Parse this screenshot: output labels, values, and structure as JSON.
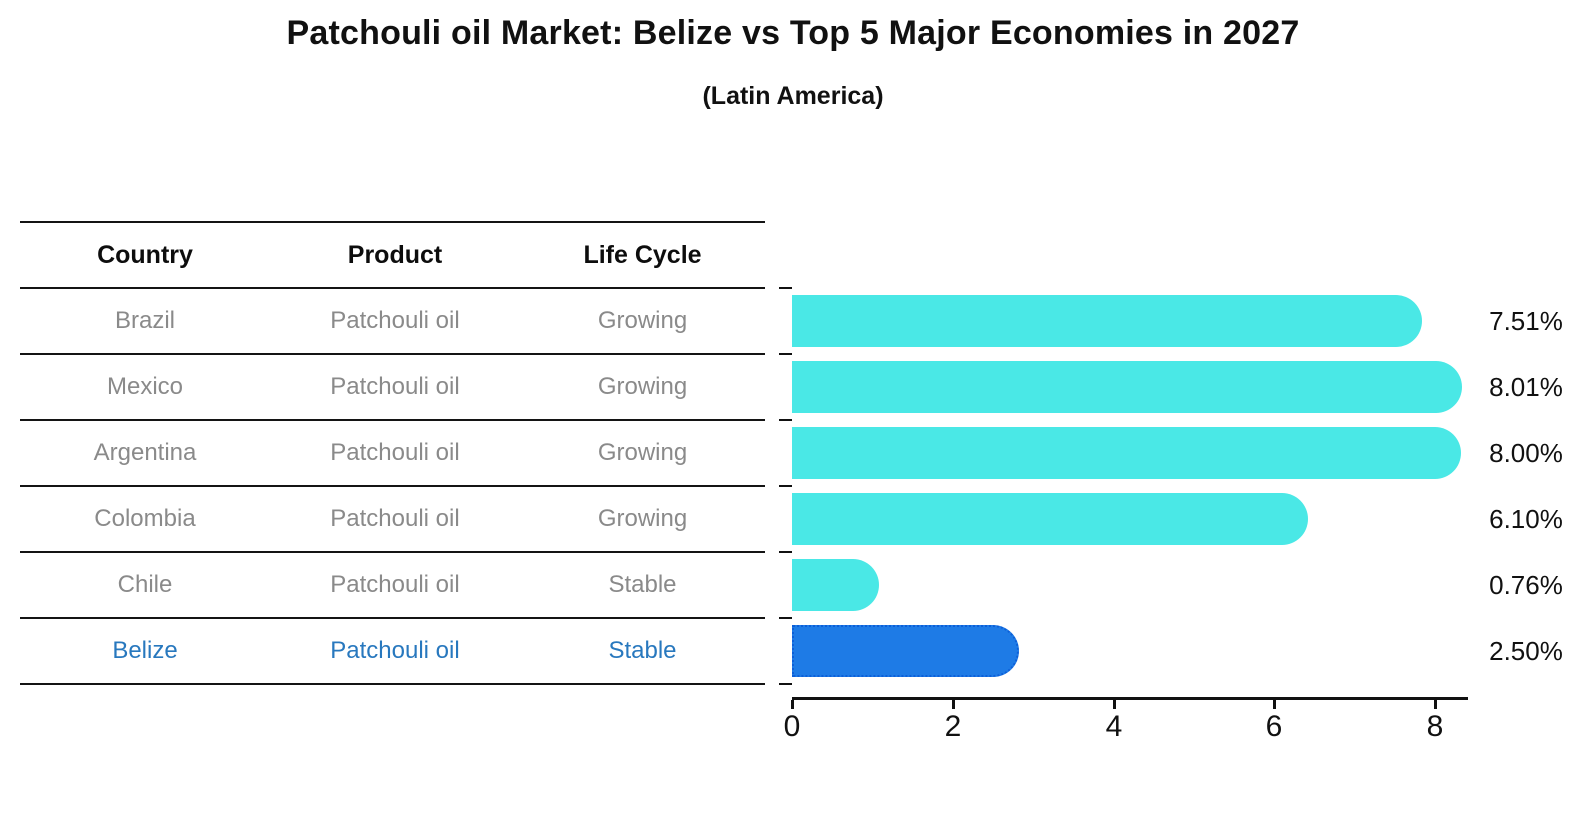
{
  "title": "Patchouli oil Market: Belize vs Top 5 Major Economies in 2027",
  "subtitle": "(Latin America)",
  "table": {
    "headers": [
      "Country",
      "Product",
      "Life Cycle"
    ],
    "rows": [
      {
        "country": "Brazil",
        "product": "Patchouli oil",
        "life_cycle": "Growing",
        "highlight": false
      },
      {
        "country": "Mexico",
        "product": "Patchouli oil",
        "life_cycle": "Growing",
        "highlight": false
      },
      {
        "country": "Argentina",
        "product": "Patchouli oil",
        "life_cycle": "Growing",
        "highlight": false
      },
      {
        "country": "Colombia",
        "product": "Patchouli oil",
        "life_cycle": "Growing",
        "highlight": false
      },
      {
        "country": "Chile",
        "product": "Patchouli oil",
        "life_cycle": "Stable",
        "highlight": false
      },
      {
        "country": "Belize",
        "product": "Patchouli oil",
        "life_cycle": "Stable",
        "highlight": true
      }
    ]
  },
  "chart_data": {
    "type": "bar",
    "orientation": "horizontal",
    "title": "Patchouli oil Market: Belize vs Top 5 Major Economies in 2027",
    "subtitle": "(Latin America)",
    "categories": [
      "Brazil",
      "Mexico",
      "Argentina",
      "Colombia",
      "Chile",
      "Belize"
    ],
    "values": [
      7.51,
      8.01,
      8.0,
      6.1,
      0.76,
      2.5
    ],
    "value_labels": [
      "7.51%",
      "8.01%",
      "8.00%",
      "6.10%",
      "0.76%",
      "2.50%"
    ],
    "xlabel": "",
    "ylabel": "",
    "xlim": [
      0,
      8.4
    ],
    "x_ticks": [
      "0",
      "2",
      "4",
      "6",
      "8"
    ],
    "grid": false,
    "legend": "none",
    "bar_color": "#4AE8E6",
    "highlight_index": 5,
    "highlight_color": "#1E7BE6",
    "highlight_border_color": "#0D5FD8",
    "axis_color": "#111111",
    "table_text_color": "#8A8A8A",
    "highlight_text_color": "#2878BE"
  }
}
